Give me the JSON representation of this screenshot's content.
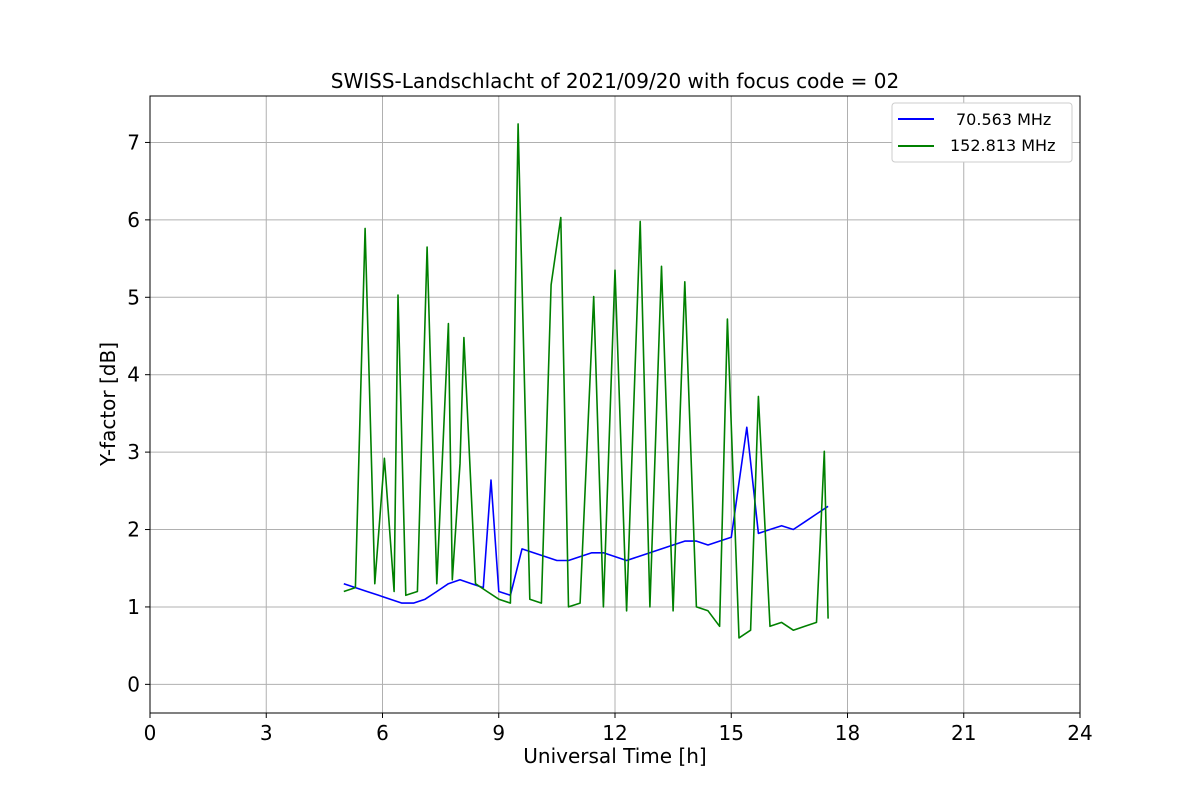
{
  "chart_data": {
    "type": "line",
    "title": "SWISS-Landschlacht of 2021/09/20 with focus code = 02",
    "xlabel": "Universal Time [h]",
    "ylabel": "Y-factor [dB]",
    "xlim": [
      0,
      24
    ],
    "ylim": [
      -0.37,
      7.6
    ],
    "xticks": [
      0,
      3,
      6,
      9,
      12,
      15,
      18,
      21,
      24
    ],
    "xtick_labels": [
      "0",
      "3",
      "6",
      "9",
      "12",
      "15",
      "18",
      "21",
      "24"
    ],
    "yticks": [
      0,
      1,
      2,
      3,
      4,
      5,
      6,
      7
    ],
    "ytick_labels": [
      "0",
      "1",
      "2",
      "3",
      "4",
      "5",
      "6",
      "7"
    ],
    "grid": true,
    "legend_position": "top-right",
    "series": [
      {
        "name": "70.563 MHz",
        "color": "#0000ff",
        "x": [
          5.0,
          5.3,
          5.6,
          5.9,
          6.2,
          6.5,
          6.8,
          7.1,
          7.4,
          7.7,
          8.0,
          8.3,
          8.6,
          8.8,
          9.0,
          9.3,
          9.6,
          9.9,
          10.2,
          10.5,
          10.8,
          11.1,
          11.4,
          11.7,
          12.0,
          12.3,
          12.6,
          12.9,
          13.2,
          13.5,
          13.8,
          14.1,
          14.4,
          14.7,
          15.0,
          15.4,
          15.7,
          16.0,
          16.3,
          16.6,
          16.9,
          17.2,
          17.5
        ],
        "y": [
          1.3,
          1.25,
          1.2,
          1.15,
          1.1,
          1.05,
          1.05,
          1.1,
          1.2,
          1.3,
          1.35,
          1.3,
          1.25,
          2.64,
          1.2,
          1.15,
          1.75,
          1.7,
          1.65,
          1.6,
          1.6,
          1.65,
          1.7,
          1.7,
          1.65,
          1.6,
          1.65,
          1.7,
          1.75,
          1.8,
          1.85,
          1.85,
          1.8,
          1.85,
          1.9,
          3.32,
          1.95,
          2.0,
          2.05,
          2.0,
          2.1,
          2.2,
          2.3
        ]
      },
      {
        "name": "152.813 MHz",
        "color": "#008000",
        "x": [
          5.0,
          5.3,
          5.55,
          5.8,
          6.05,
          6.3,
          6.4,
          6.6,
          6.9,
          7.15,
          7.4,
          7.7,
          7.8,
          8.0,
          8.1,
          8.4,
          8.7,
          9.0,
          9.3,
          9.5,
          9.8,
          10.1,
          10.35,
          10.6,
          10.8,
          11.1,
          11.45,
          11.7,
          12.0,
          12.3,
          12.65,
          12.9,
          13.2,
          13.5,
          13.8,
          14.1,
          14.4,
          14.7,
          14.9,
          15.2,
          15.5,
          15.7,
          16.0,
          16.3,
          16.6,
          16.9,
          17.2,
          17.4,
          17.5
        ],
        "y": [
          1.2,
          1.25,
          5.89,
          1.3,
          2.92,
          1.2,
          5.03,
          1.15,
          1.2,
          5.65,
          1.3,
          4.66,
          1.35,
          2.85,
          4.48,
          1.3,
          1.2,
          1.1,
          1.05,
          7.24,
          1.1,
          1.05,
          5.16,
          6.03,
          1.0,
          1.05,
          5.01,
          1.0,
          5.35,
          0.95,
          5.98,
          1.0,
          5.4,
          0.95,
          5.2,
          1.0,
          0.95,
          0.75,
          4.72,
          0.6,
          0.7,
          3.72,
          0.75,
          0.8,
          0.7,
          0.75,
          0.8,
          3.01,
          0.85
        ]
      }
    ]
  }
}
